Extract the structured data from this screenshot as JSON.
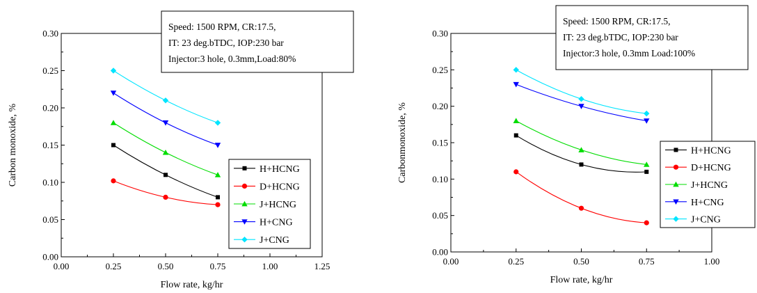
{
  "chart_data": [
    {
      "type": "line",
      "xlabel": "Flow rate, kg/hr",
      "ylabel": "Carbon monoxide, %",
      "xlim": [
        0.0,
        1.25
      ],
      "ylim": [
        0.0,
        0.3
      ],
      "xticks": [
        0.0,
        0.25,
        0.5,
        0.75,
        1.0,
        1.25
      ],
      "xtick_labels": [
        "0.00",
        "0.25",
        "0.50",
        "0.75",
        "1.00",
        "1.25"
      ],
      "yticks": [
        0.0,
        0.05,
        0.1,
        0.15,
        0.2,
        0.25,
        0.3
      ],
      "ytick_labels": [
        "0.00",
        "0.05",
        "0.10",
        "0.15",
        "0.20",
        "0.25",
        "0.30"
      ],
      "annotation": [
        "Speed: 1500 RPM, CR:17.5,",
        "IT: 23 deg.bTDC, IOP:230 bar",
        "Injector:3 hole, 0.3mm,Load:80%"
      ],
      "legend_placement": "lower-right",
      "grid": false,
      "x": [
        0.25,
        0.5,
        0.75
      ],
      "series": [
        {
          "name": "H+HCNG",
          "values": [
            0.15,
            0.11,
            0.08
          ],
          "color": "#000000",
          "marker": "square"
        },
        {
          "name": "D+HCNG",
          "values": [
            0.102,
            0.08,
            0.07
          ],
          "color": "#ff0000",
          "marker": "circle"
        },
        {
          "name": "J+HCNG",
          "values": [
            0.18,
            0.14,
            0.11
          ],
          "color": "#00dd00",
          "marker": "triangle-up"
        },
        {
          "name": "H+CNG",
          "values": [
            0.22,
            0.18,
            0.15
          ],
          "color": "#0000ff",
          "marker": "triangle-down"
        },
        {
          "name": "J+CNG",
          "values": [
            0.25,
            0.21,
            0.18
          ],
          "color": "#00e5ff",
          "marker": "diamond"
        }
      ]
    },
    {
      "type": "line",
      "xlabel": "Flow rate, kg/hr",
      "ylabel": "Carbonmonoxide, %",
      "xlim": [
        0.0,
        1.0
      ],
      "ylim": [
        0.0,
        0.3
      ],
      "xticks": [
        0.0,
        0.25,
        0.5,
        0.75,
        1.0
      ],
      "xtick_labels": [
        "0.00",
        "0.25",
        "0.50",
        "0.75",
        "1.00"
      ],
      "yticks": [
        0.0,
        0.05,
        0.1,
        0.15,
        0.2,
        0.25,
        0.3
      ],
      "ytick_labels": [
        "0.00",
        "0.05",
        "0.10",
        "0.15",
        "0.20",
        "0.25",
        "0.30"
      ],
      "annotation": [
        "Speed: 1500 RPM, CR:17.5,",
        "IT: 23 deg.bTDC, IOP:230 bar",
        "Injector:3 hole, 0.3mm Load:100%"
      ],
      "legend_placement": "right",
      "grid": false,
      "x": [
        0.25,
        0.5,
        0.75
      ],
      "series": [
        {
          "name": "H+HCNG",
          "values": [
            0.16,
            0.12,
            0.11
          ],
          "color": "#000000",
          "marker": "square"
        },
        {
          "name": "D+HCNG",
          "values": [
            0.11,
            0.06,
            0.04
          ],
          "color": "#ff0000",
          "marker": "circle"
        },
        {
          "name": "J+HCNG",
          "values": [
            0.18,
            0.14,
            0.12
          ],
          "color": "#00dd00",
          "marker": "triangle-up"
        },
        {
          "name": "H+CNG",
          "values": [
            0.23,
            0.2,
            0.18
          ],
          "color": "#0000ff",
          "marker": "triangle-down"
        },
        {
          "name": "J+CNG",
          "values": [
            0.25,
            0.21,
            0.19
          ],
          "color": "#00e5ff",
          "marker": "diamond"
        }
      ]
    }
  ]
}
